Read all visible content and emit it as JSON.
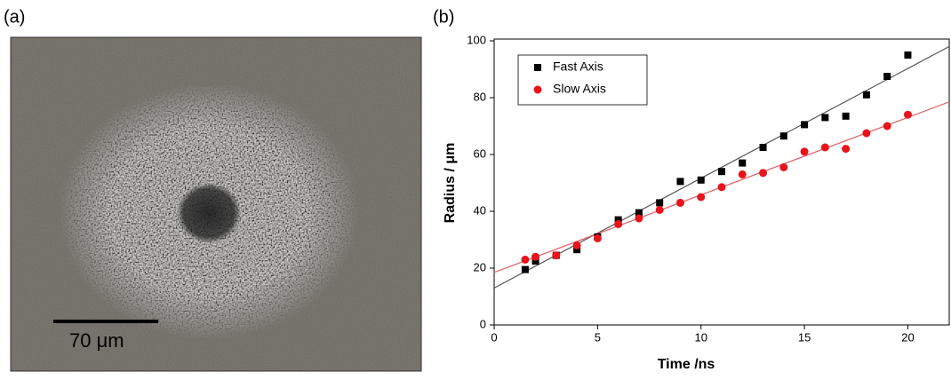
{
  "panel_a": {
    "label": "(a)",
    "scale_bar": "70 μm"
  },
  "chart_data": {
    "type": "scatter",
    "panel_label": "(b)",
    "x_label": "Time /ns",
    "y_label": "Radius / μm",
    "x": [
      1.5,
      2,
      3,
      4,
      5,
      6,
      7,
      8,
      9,
      10,
      11,
      12,
      13,
      14,
      15,
      16,
      17,
      18,
      19,
      20
    ],
    "series": [
      {
        "name": "Fast Axis",
        "color": "#000000",
        "marker": "square",
        "values": [
          19.5,
          22.5,
          24.5,
          26.5,
          31,
          37,
          39.5,
          43,
          50.5,
          51,
          54,
          57,
          62.5,
          66.5,
          70.5,
          73,
          73.5,
          81,
          87.5,
          95
        ],
        "fit_x": [
          0,
          22
        ],
        "fit_values": [
          13,
          98
        ],
        "fit_color": "#555555"
      },
      {
        "name": "Slow Axis",
        "color": "#e8141b",
        "marker": "circle",
        "values": [
          23,
          24,
          24.5,
          28,
          30.5,
          35.5,
          37.5,
          40.5,
          43,
          45,
          48.5,
          53,
          53.5,
          55.5,
          61,
          62.5,
          62,
          67.5,
          70,
          74
        ],
        "fit_x": [
          0,
          22
        ],
        "fit_values": [
          18.5,
          78.5
        ],
        "fit_color": "#e0646a"
      }
    ],
    "xlim": [
      0,
      22
    ],
    "ylim": [
      0,
      100
    ],
    "xticks": [
      0,
      5,
      10,
      15,
      20
    ],
    "yticks": [
      0,
      20,
      40,
      60,
      80,
      100
    ],
    "legend": "upper left"
  }
}
